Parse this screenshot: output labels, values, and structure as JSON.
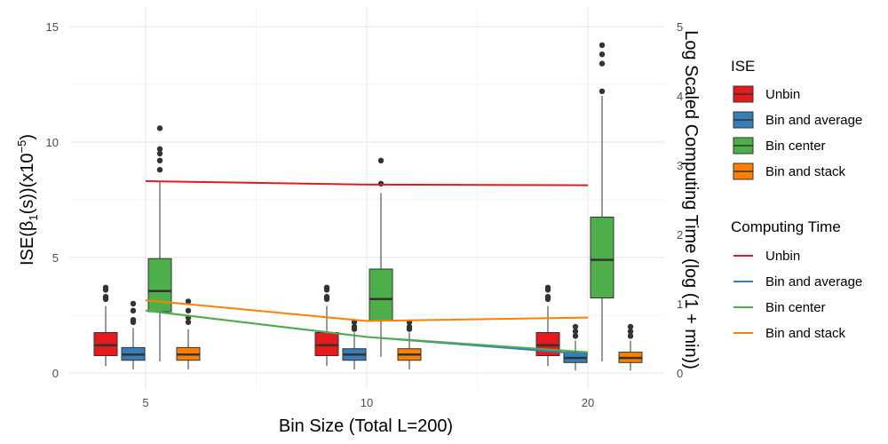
{
  "chart_data": {
    "type": "box",
    "xlabel": "Bin Size (Total L=200)",
    "ylabel_parts": {
      "pre": "ISE(",
      "beta": "β",
      "sub": "1",
      "mid": "(s))(x10",
      "sup": "−5",
      "post": ")"
    },
    "y2label": "Log Scaled Computing Time (log (1 + min))",
    "x_ticks": [
      "5",
      "10",
      "20"
    ],
    "y_ticks": [
      "0",
      "5",
      "10",
      "15"
    ],
    "y2_ticks": [
      "0",
      "1",
      "2",
      "3",
      "4",
      "5"
    ],
    "x_values": [
      5,
      10,
      20
    ],
    "ylim": [
      0,
      15.5
    ],
    "y2lim": [
      0,
      5.1667
    ],
    "grid": true,
    "legend_position": "right",
    "colors": {
      "Unbin": "#E41A1C",
      "Bin and average": "#377EB8",
      "Bin center": "#4DAF4A",
      "Bin and stack": "#FF7F00"
    },
    "box_series": [
      {
        "name": "Unbin",
        "boxes": [
          {
            "x": 5,
            "q1": 0.75,
            "median": 1.2,
            "q3": 1.75,
            "lower": 0.3,
            "upper": 2.9,
            "outliers": [
              3.2,
              3.3,
              3.6,
              3.7
            ]
          },
          {
            "x": 10,
            "q1": 0.75,
            "median": 1.2,
            "q3": 1.75,
            "lower": 0.3,
            "upper": 2.9,
            "outliers": [
              3.2,
              3.3,
              3.6,
              3.7
            ]
          },
          {
            "x": 20,
            "q1": 0.75,
            "median": 1.2,
            "q3": 1.75,
            "lower": 0.3,
            "upper": 2.9,
            "outliers": [
              3.2,
              3.3,
              3.6,
              3.7
            ]
          }
        ]
      },
      {
        "name": "Bin and average",
        "boxes": [
          {
            "x": 5,
            "q1": 0.55,
            "median": 0.8,
            "q3": 1.1,
            "lower": 0.15,
            "upper": 1.95,
            "outliers": [
              2.2,
              2.3,
              2.7,
              3.0
            ]
          },
          {
            "x": 10,
            "q1": 0.55,
            "median": 0.8,
            "q3": 1.05,
            "lower": 0.15,
            "upper": 1.75,
            "outliers": [
              1.9,
              2.0,
              2.2
            ]
          },
          {
            "x": 20,
            "q1": 0.45,
            "median": 0.65,
            "q3": 0.9,
            "lower": 0.1,
            "upper": 1.4,
            "outliers": [
              1.6,
              1.8,
              2.0
            ]
          }
        ]
      },
      {
        "name": "Bin center",
        "boxes": [
          {
            "x": 5,
            "q1": 2.65,
            "median": 3.55,
            "q3": 4.95,
            "lower": 0.5,
            "upper": 8.3,
            "outliers": [
              8.8,
              9.2,
              9.5,
              9.7,
              10.6
            ]
          },
          {
            "x": 10,
            "q1": 2.25,
            "median": 3.2,
            "q3": 4.5,
            "lower": 0.7,
            "upper": 7.8,
            "outliers": [
              8.2,
              9.2
            ]
          },
          {
            "x": 20,
            "q1": 3.25,
            "median": 4.9,
            "q3": 6.75,
            "lower": 0.5,
            "upper": 12.0,
            "outliers": [
              12.2,
              13.4,
              13.8,
              14.2
            ]
          }
        ]
      },
      {
        "name": "Bin and stack",
        "boxes": [
          {
            "x": 5,
            "q1": 0.55,
            "median": 0.8,
            "q3": 1.1,
            "lower": 0.15,
            "upper": 1.9,
            "outliers": [
              2.2,
              2.4,
              2.7,
              3.1
            ]
          },
          {
            "x": 10,
            "q1": 0.55,
            "median": 0.8,
            "q3": 1.05,
            "lower": 0.15,
            "upper": 1.75,
            "outliers": [
              1.9,
              2.0,
              2.2
            ]
          },
          {
            "x": 20,
            "q1": 0.45,
            "median": 0.65,
            "q3": 0.9,
            "lower": 0.1,
            "upper": 1.4,
            "outliers": [
              1.6,
              1.8,
              2.0
            ]
          }
        ]
      }
    ],
    "line_series": [
      {
        "name": "Unbin",
        "x": [
          5,
          10,
          20
        ],
        "y": [
          2.77,
          2.72,
          2.71
        ]
      },
      {
        "name": "Bin and average",
        "x": [
          5,
          10,
          20
        ],
        "y": [
          0.9,
          0.52,
          0.27
        ]
      },
      {
        "name": "Bin center",
        "x": [
          5,
          10,
          20
        ],
        "y": [
          0.9,
          0.52,
          0.3
        ]
      },
      {
        "name": "Bin and stack",
        "x": [
          5,
          10,
          20
        ],
        "y": [
          1.05,
          0.75,
          0.8
        ]
      }
    ],
    "legend_box_title": "ISE",
    "legend_box_items": [
      "Unbin",
      "Bin and average",
      "Bin center",
      "Bin and stack"
    ],
    "legend_line_title": "Computing Time",
    "legend_line_items": [
      "Unbin",
      "Bin and average",
      "Bin center",
      "Bin and stack"
    ]
  }
}
